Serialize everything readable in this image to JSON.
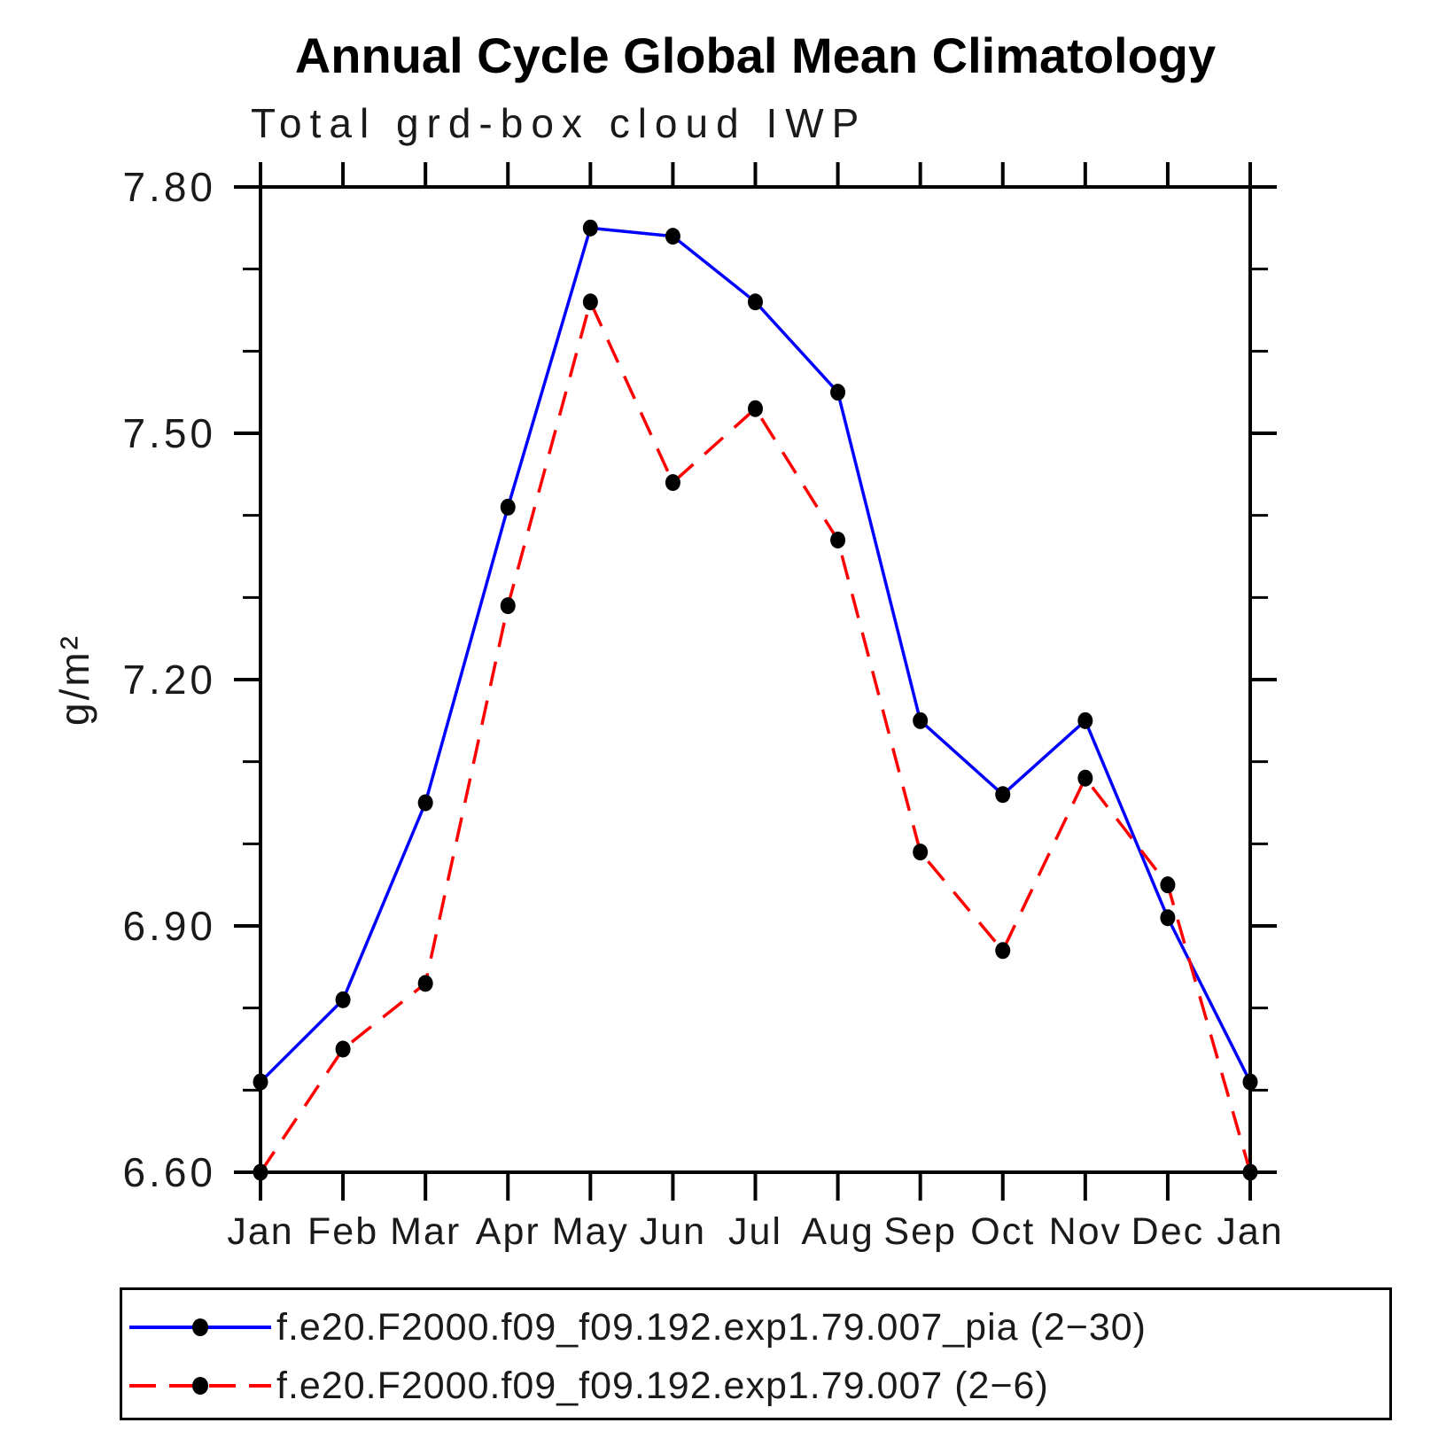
{
  "chart_data": {
    "type": "line",
    "title": "Annual Cycle Global Mean Climatology",
    "subtitle": "Total grd-box cloud IWP",
    "xlabel": "",
    "ylabel": "g/m²",
    "ylim": [
      6.6,
      7.8
    ],
    "yticks_major": [
      {
        "value": 7.8,
        "label": "7.80"
      },
      {
        "value": 7.5,
        "label": "7.50"
      },
      {
        "value": 7.2,
        "label": "7.20"
      },
      {
        "value": 6.9,
        "label": "6.90"
      },
      {
        "value": 6.6,
        "label": "6.60"
      }
    ],
    "ytick_minor_step": 0.1,
    "categories": [
      "Jan",
      "Feb",
      "Mar",
      "Apr",
      "May",
      "Jun",
      "Jul",
      "Aug",
      "Sep",
      "Oct",
      "Nov",
      "Dec",
      "Jan"
    ],
    "grid": false,
    "legend_position": "bottom",
    "marker": {
      "shape": "circle",
      "color": "#000000"
    },
    "axis_color": "#000000",
    "series": [
      {
        "name": "f.e20.F2000.f09_f09.192.exp1.79.007_pia (2−30)",
        "color": "#0000ff",
        "line_style": "solid",
        "values": [
          6.71,
          6.81,
          7.05,
          7.41,
          7.75,
          7.74,
          7.66,
          7.55,
          7.15,
          7.06,
          7.15,
          6.91,
          6.71
        ]
      },
      {
        "name": "f.e20.F2000.f09_f09.192.exp1.79.007 (2−6)",
        "color": "#ff0000",
        "line_style": "dashed",
        "values": [
          6.6,
          6.75,
          6.83,
          7.29,
          7.66,
          7.44,
          7.53,
          7.37,
          6.99,
          6.87,
          7.08,
          6.95,
          6.6
        ]
      }
    ]
  }
}
